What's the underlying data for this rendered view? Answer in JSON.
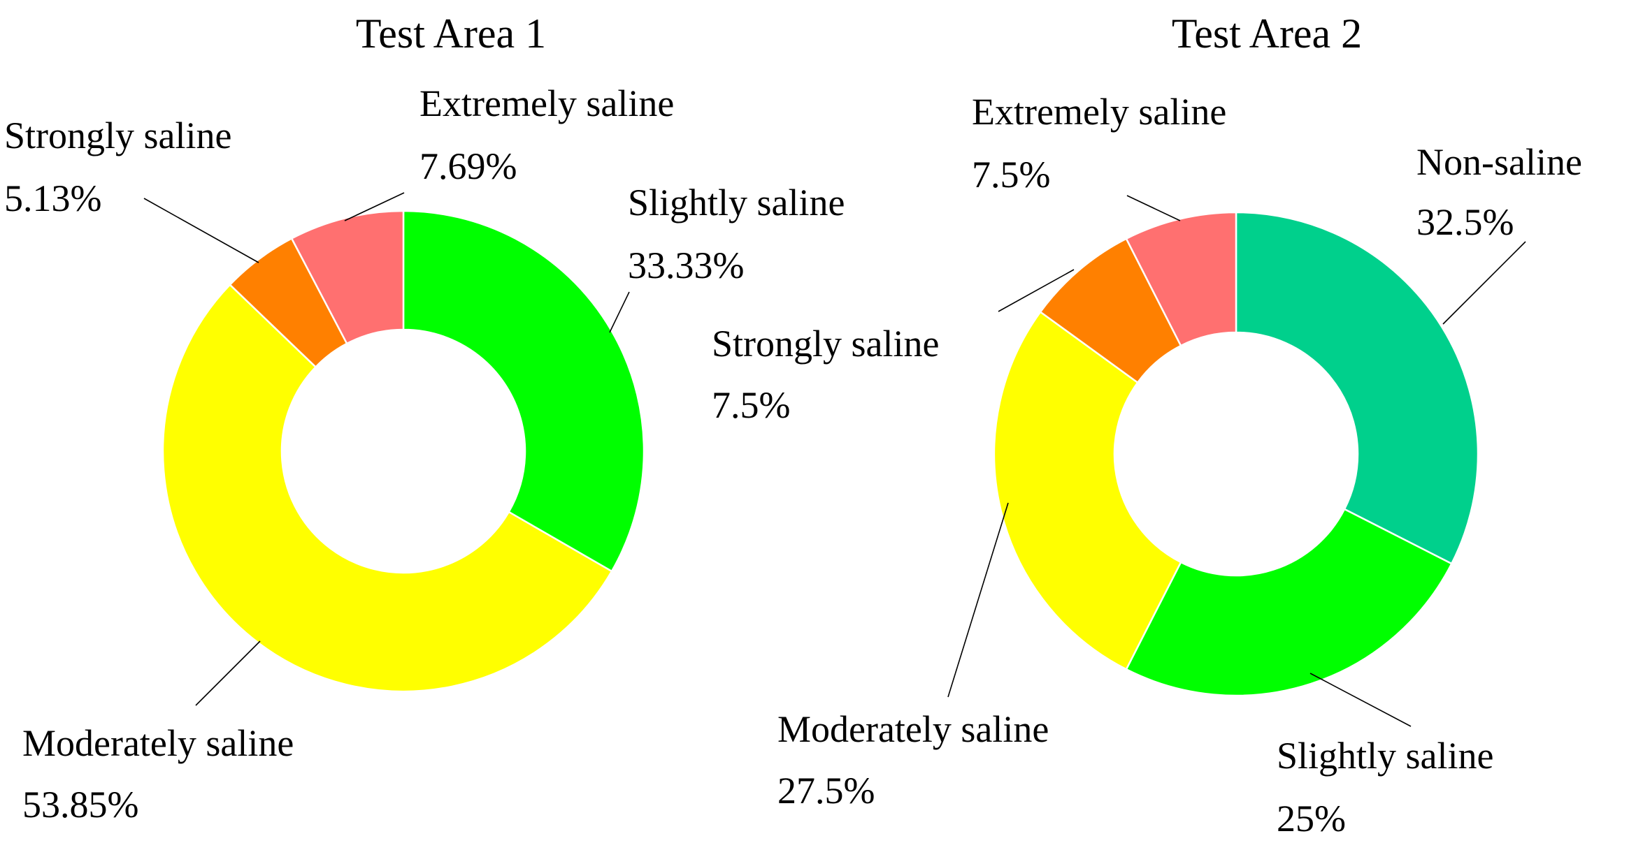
{
  "chart_data": [
    {
      "type": "pie",
      "title": "Test Area 1",
      "slices": [
        {
          "name": "Slightly saline",
          "percent": "33.33%",
          "value": 33.33,
          "color": "#00FF00"
        },
        {
          "name": "Moderately saline",
          "percent": "53.85%",
          "value": 53.85,
          "color": "#FFFF00"
        },
        {
          "name": "Strongly saline",
          "percent": "5.13%",
          "value": 5.13,
          "color": "#FF8000"
        },
        {
          "name": "Extremely saline",
          "percent": "7.69%",
          "value": 7.69,
          "color": "#FF7070"
        }
      ]
    },
    {
      "type": "pie",
      "title": "Test Area 2",
      "slices": [
        {
          "name": "Non-saline",
          "percent": "32.5%",
          "value": 32.5,
          "color": "#00D08C"
        },
        {
          "name": "Slightly saline",
          "percent": "25%",
          "value": 25,
          "color": "#00FF00"
        },
        {
          "name": "Moderately saline",
          "percent": "27.5%",
          "value": 27.5,
          "color": "#FFFF00"
        },
        {
          "name": "Strongly saline",
          "percent": "7.5%",
          "value": 7.5,
          "color": "#FF8000"
        },
        {
          "name": "Extremely saline",
          "percent": "7.5%",
          "value": 7.5,
          "color": "#FF7070"
        }
      ]
    }
  ]
}
